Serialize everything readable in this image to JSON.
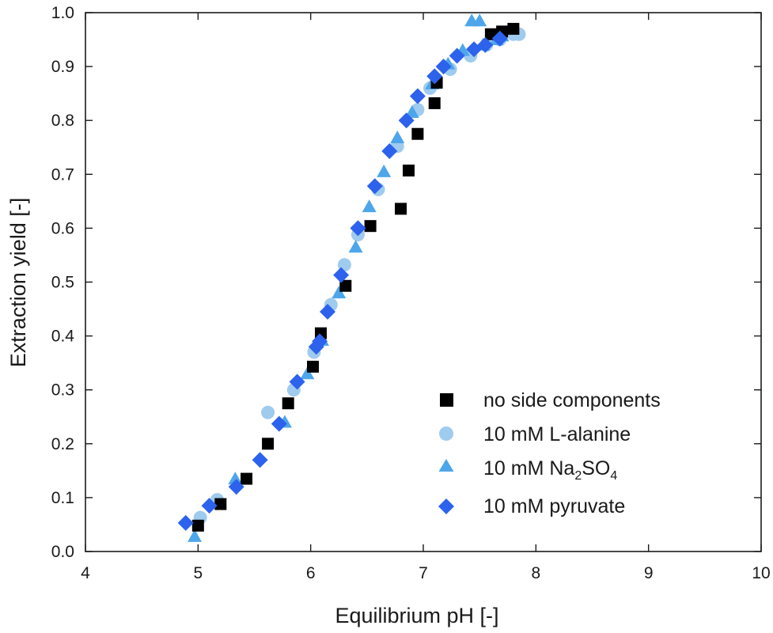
{
  "chart_data": {
    "type": "scatter",
    "xlabel": "Equilibrium pH [-]",
    "ylabel": "Extraction yield [-]",
    "xlim": [
      4,
      10
    ],
    "ylim": [
      0.0,
      1.0
    ],
    "x_ticks": [
      "4",
      "5",
      "6",
      "7",
      "8",
      "9",
      "10"
    ],
    "y_ticks": [
      "0.0",
      "0.1",
      "0.2",
      "0.3",
      "0.4",
      "0.5",
      "0.6",
      "0.7",
      "0.8",
      "0.9",
      "1.0"
    ],
    "grid": false,
    "legend_position": "bottom-right",
    "series": [
      {
        "name": "no side components",
        "marker": "square",
        "color": "#000000",
        "points": [
          [
            5.0,
            0.048
          ],
          [
            5.2,
            0.088
          ],
          [
            5.43,
            0.135
          ],
          [
            5.62,
            0.2
          ],
          [
            5.8,
            0.275
          ],
          [
            6.02,
            0.343
          ],
          [
            6.09,
            0.405
          ],
          [
            6.31,
            0.493
          ],
          [
            6.53,
            0.604
          ],
          [
            6.8,
            0.636
          ],
          [
            6.87,
            0.707
          ],
          [
            6.95,
            0.775
          ],
          [
            7.1,
            0.832
          ],
          [
            7.12,
            0.87
          ],
          [
            7.6,
            0.96
          ],
          [
            7.7,
            0.965
          ],
          [
            7.8,
            0.97
          ]
        ]
      },
      {
        "name": "10 mM L-alanine",
        "marker": "circle",
        "color": "#9fcbee",
        "points": [
          [
            5.02,
            0.063
          ],
          [
            5.17,
            0.096
          ],
          [
            5.62,
            0.258
          ],
          [
            5.85,
            0.3
          ],
          [
            6.03,
            0.37
          ],
          [
            6.18,
            0.458
          ],
          [
            6.3,
            0.532
          ],
          [
            6.42,
            0.588
          ],
          [
            6.6,
            0.672
          ],
          [
            6.77,
            0.752
          ],
          [
            6.95,
            0.82
          ],
          [
            7.06,
            0.86
          ],
          [
            7.24,
            0.895
          ],
          [
            7.42,
            0.92
          ],
          [
            7.56,
            0.94
          ],
          [
            7.68,
            0.95
          ],
          [
            7.8,
            0.96
          ],
          [
            7.85,
            0.96
          ]
        ]
      },
      {
        "name": "10 mM Na₂SO₄",
        "name_text": "10 mM Na",
        "name_sub1": "2",
        "name_mid": "SO",
        "name_sub2": "4",
        "marker": "triangle",
        "color": "#4ea6ea",
        "points": [
          [
            4.97,
            0.028
          ],
          [
            5.33,
            0.135
          ],
          [
            5.77,
            0.24
          ],
          [
            5.97,
            0.33
          ],
          [
            6.1,
            0.392
          ],
          [
            6.25,
            0.48
          ],
          [
            6.4,
            0.565
          ],
          [
            6.52,
            0.64
          ],
          [
            6.65,
            0.705
          ],
          [
            6.77,
            0.768
          ],
          [
            6.9,
            0.815
          ],
          [
            7.08,
            0.868
          ],
          [
            7.22,
            0.905
          ],
          [
            7.35,
            0.93
          ],
          [
            7.43,
            0.985
          ],
          [
            7.5,
            0.985
          ],
          [
            7.53,
            0.94
          ],
          [
            7.65,
            0.95
          ],
          [
            7.7,
            0.957
          ]
        ]
      },
      {
        "name": "10 mM pyruvate",
        "marker": "diamond",
        "color": "#2d62ec",
        "points": [
          [
            4.89,
            0.053
          ],
          [
            5.1,
            0.085
          ],
          [
            5.34,
            0.12
          ],
          [
            5.55,
            0.17
          ],
          [
            5.72,
            0.237
          ],
          [
            5.88,
            0.315
          ],
          [
            6.05,
            0.38
          ],
          [
            6.08,
            0.39
          ],
          [
            6.15,
            0.445
          ],
          [
            6.27,
            0.513
          ],
          [
            6.42,
            0.6
          ],
          [
            6.57,
            0.678
          ],
          [
            6.7,
            0.743
          ],
          [
            6.85,
            0.8
          ],
          [
            6.95,
            0.845
          ],
          [
            7.1,
            0.882
          ],
          [
            7.18,
            0.9
          ],
          [
            7.3,
            0.92
          ],
          [
            7.45,
            0.932
          ],
          [
            7.55,
            0.94
          ],
          [
            7.68,
            0.952
          ]
        ]
      }
    ]
  }
}
